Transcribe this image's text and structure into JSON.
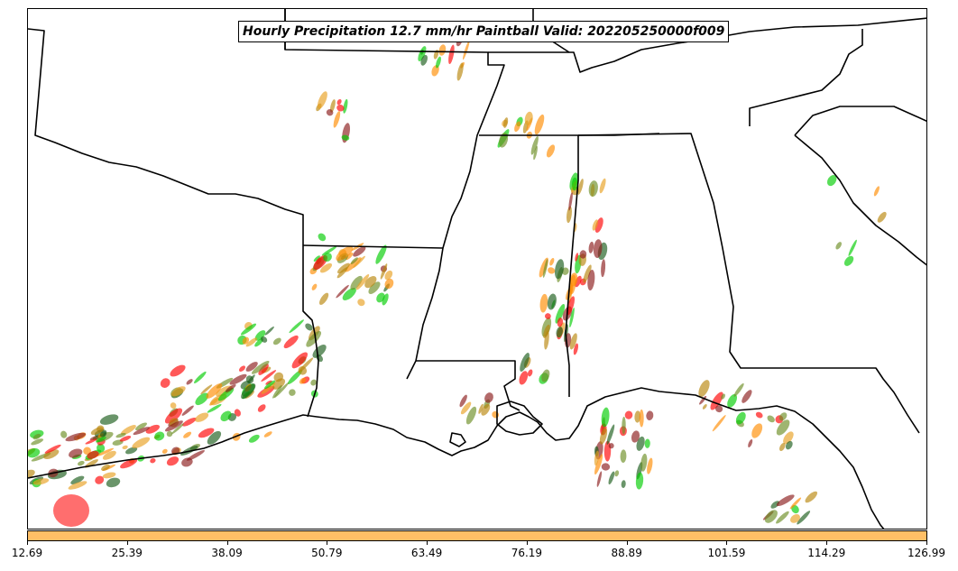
{
  "title": "Hourly Precipitation 12.7 mm/hr Paintball Valid: 202205250000f009",
  "colorbar": {
    "color": "#ffbf66",
    "ticks": [
      "12.69",
      "25.39",
      "38.09",
      "50.79",
      "63.49",
      "76.19",
      "88.89",
      "101.59",
      "114.29",
      "126.99"
    ]
  },
  "member_colors": [
    "#ff0000",
    "#00cc00",
    "#ff8c00",
    "#8b1a1a",
    "#6b8e23",
    "#e8a020",
    "#1a5c1a",
    "#b8860b"
  ]
}
